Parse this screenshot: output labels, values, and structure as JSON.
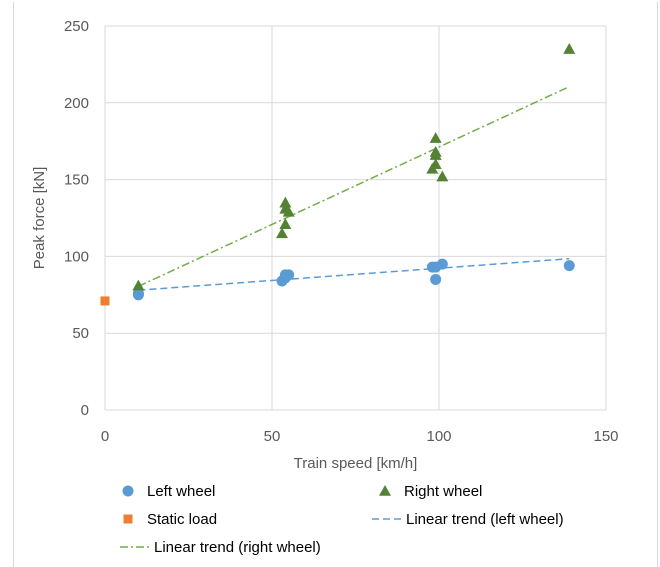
{
  "chart_data": {
    "type": "scatter",
    "title": "",
    "xlabel": "Train speed [km/h]",
    "ylabel": "Peak force [kN]",
    "xlim": [
      0,
      150
    ],
    "ylim": [
      0,
      250
    ],
    "xticks": [
      0,
      50,
      100,
      150
    ],
    "yticks": [
      0,
      50,
      100,
      150,
      200,
      250
    ],
    "grid": true,
    "legend_position": "bottom",
    "series": [
      {
        "name": "Left wheel",
        "marker": "circle",
        "color": "#5b9bd5",
        "points": [
          [
            10,
            75
          ],
          [
            10,
            76
          ],
          [
            53,
            84
          ],
          [
            54,
            88
          ],
          [
            55,
            88
          ],
          [
            54,
            86
          ],
          [
            98,
            93
          ],
          [
            99,
            93
          ],
          [
            99,
            85
          ],
          [
            101,
            95
          ],
          [
            139,
            94
          ]
        ]
      },
      {
        "name": "Right wheel",
        "marker": "triangle",
        "color": "#548235",
        "points": [
          [
            10,
            81
          ],
          [
            53,
            115
          ],
          [
            54,
            121
          ],
          [
            54,
            135
          ],
          [
            54,
            131
          ],
          [
            55,
            129
          ],
          [
            98,
            157
          ],
          [
            99,
            160
          ],
          [
            99,
            168
          ],
          [
            99,
            166
          ],
          [
            99,
            177
          ],
          [
            101,
            152
          ],
          [
            139,
            235
          ]
        ]
      },
      {
        "name": "Static load",
        "marker": "square",
        "color": "#ed7d31",
        "points": [
          [
            0,
            71
          ]
        ]
      }
    ],
    "trendlines": [
      {
        "name": "Linear trend (left wheel)",
        "style": "dashed",
        "color": "#5b9bd5",
        "x": [
          10,
          139
        ],
        "y": [
          78,
          98.5
        ]
      },
      {
        "name": "Linear trend (right wheel)",
        "style": "dash-dot",
        "color": "#70ad47",
        "x": [
          10,
          139
        ],
        "y": [
          80.5,
          210.5
        ]
      }
    ],
    "legend": [
      {
        "label": "Left wheel",
        "symbol": "circle",
        "color": "#5b9bd5"
      },
      {
        "label": "Right wheel",
        "symbol": "triangle",
        "color": "#548235"
      },
      {
        "label": "Static load",
        "symbol": "square",
        "color": "#ed7d31"
      },
      {
        "label": "Linear trend (left wheel)",
        "symbol": "dashed",
        "color": "#5b9bd5"
      },
      {
        "label": "Linear trend (right wheel)",
        "symbol": "dash-dot",
        "color": "#70ad47"
      }
    ]
  }
}
